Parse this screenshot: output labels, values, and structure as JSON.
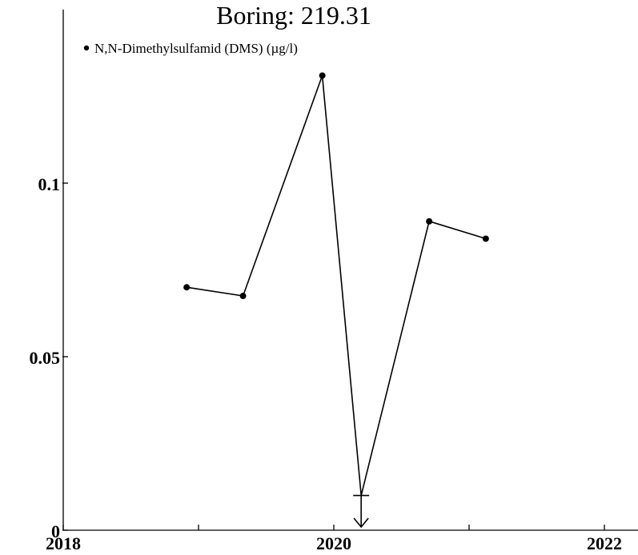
{
  "chart_data": {
    "type": "line",
    "title": "Boring: 219.31",
    "xlabel": "",
    "ylabel": "",
    "xlim": [
      2018,
      2022
    ],
    "ylim": [
      0,
      0.1
    ],
    "x_ticks": [
      "2018",
      "2020",
      "2022"
    ],
    "y_ticks": [
      "0",
      "0.05",
      "0.1"
    ],
    "legend_position": "top-left",
    "series": [
      {
        "name": "N,N-Dimethylsulfamid (DMS) (µg/l)",
        "color": "#000000",
        "points": [
          {
            "x": "2018-11-30",
            "y": 0.07
          },
          {
            "x": "2019-05-01",
            "y": 0.0675
          },
          {
            "x": "2019-12-01",
            "y": 0.131
          },
          {
            "x": "2020-03-15",
            "y": 0.01,
            "below_detection_limit": true
          },
          {
            "x": "2020-09-15",
            "y": 0.089
          },
          {
            "x": "2021-02-15",
            "y": 0.084
          }
        ]
      }
    ]
  }
}
